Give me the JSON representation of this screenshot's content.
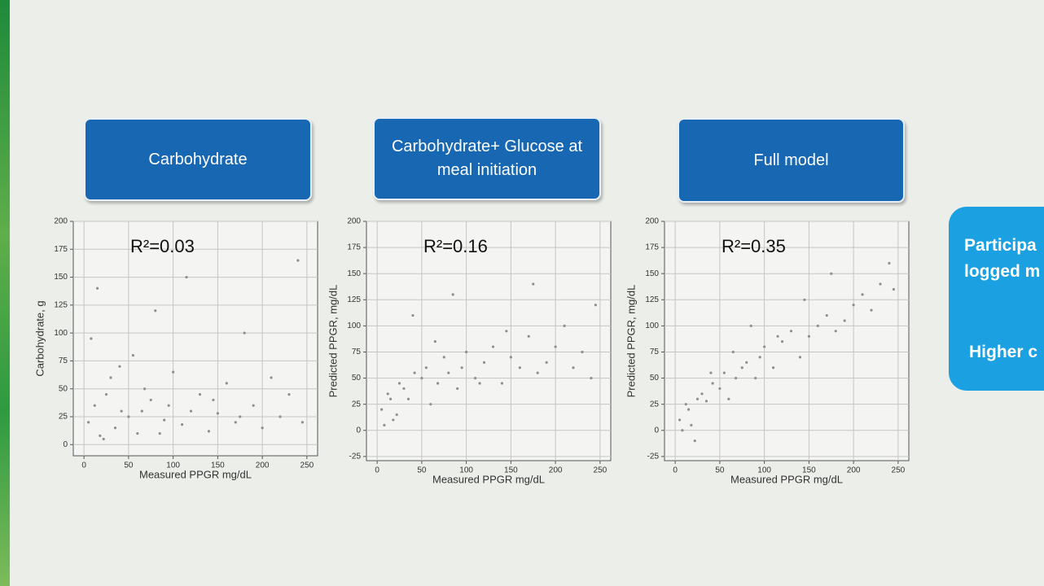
{
  "slide": {
    "side_panel": {
      "lines": [
        "Participa",
        "logged m",
        "Higher c"
      ]
    }
  },
  "chart_data": [
    {
      "type": "scatter",
      "title": "Carbohydrate",
      "annotation": "R²=0.03",
      "x_label": "Measured PPGR mg/dL",
      "y_label": "Carbohydrate, g",
      "color": "#8f8f8f",
      "grid": true,
      "xlim": [
        -12,
        262
      ],
      "ylim": [
        -10,
        200
      ],
      "xticks": [
        0,
        50,
        100,
        150,
        200,
        250
      ],
      "yticks": [
        0,
        25,
        50,
        75,
        100,
        125,
        150,
        175,
        200
      ],
      "x": [
        5,
        12,
        18,
        25,
        30,
        35,
        42,
        50,
        55,
        60,
        68,
        75,
        80,
        90,
        95,
        100,
        110,
        120,
        130,
        140,
        150,
        160,
        170,
        180,
        190,
        200,
        210,
        220,
        230,
        245,
        8,
        15,
        22,
        40,
        65,
        85,
        115,
        145,
        175,
        240
      ],
      "y": [
        20,
        35,
        8,
        45,
        60,
        15,
        30,
        25,
        80,
        10,
        50,
        40,
        120,
        22,
        35,
        65,
        18,
        30,
        45,
        12,
        28,
        55,
        20,
        100,
        35,
        15,
        60,
        25,
        45,
        20,
        95,
        140,
        5,
        70,
        30,
        10,
        150,
        40,
        25,
        165
      ]
    },
    {
      "type": "scatter",
      "title": "Carbohydrate+ Glucose at meal initiation",
      "annotation": "R²=0.16",
      "x_label": "Measured PPGR mg/dL",
      "y_label": "Predicted PPGR, mg/dL",
      "color": "#8f8f8f",
      "grid": true,
      "xlim": [
        -12,
        262
      ],
      "ylim": [
        -29,
        200
      ],
      "xticks": [
        0,
        50,
        100,
        150,
        200,
        250
      ],
      "yticks": [
        -25,
        0,
        25,
        50,
        75,
        100,
        125,
        150,
        175,
        200
      ],
      "x": [
        5,
        12,
        18,
        25,
        30,
        35,
        42,
        50,
        55,
        60,
        68,
        75,
        80,
        90,
        95,
        100,
        110,
        120,
        130,
        140,
        150,
        160,
        170,
        180,
        190,
        200,
        210,
        220,
        230,
        245,
        8,
        15,
        22,
        40,
        65,
        85,
        115,
        145,
        175,
        240
      ],
      "y": [
        20,
        35,
        10,
        45,
        40,
        30,
        55,
        50,
        60,
        25,
        45,
        70,
        55,
        40,
        60,
        75,
        50,
        65,
        80,
        45,
        70,
        60,
        90,
        55,
        65,
        80,
        100,
        60,
        75,
        120,
        5,
        30,
        15,
        110,
        85,
        130,
        45,
        95,
        140,
        50
      ]
    },
    {
      "type": "scatter",
      "title": "Full model",
      "annotation": "R²=0.35",
      "x_label": "Measured PPGR mg/dL",
      "y_label": "Predicted PPGR, mg/dL",
      "color": "#8f8f8f",
      "grid": true,
      "xlim": [
        -12,
        262
      ],
      "ylim": [
        -29,
        200
      ],
      "xticks": [
        0,
        50,
        100,
        150,
        200,
        250
      ],
      "yticks": [
        -25,
        0,
        25,
        50,
        75,
        100,
        125,
        150,
        175,
        200
      ],
      "x": [
        5,
        12,
        18,
        25,
        30,
        35,
        42,
        50,
        55,
        60,
        68,
        75,
        80,
        90,
        95,
        100,
        110,
        120,
        130,
        140,
        150,
        160,
        170,
        180,
        190,
        200,
        210,
        220,
        230,
        245,
        8,
        15,
        22,
        40,
        65,
        85,
        115,
        145,
        175,
        240
      ],
      "y": [
        10,
        25,
        5,
        30,
        35,
        28,
        45,
        40,
        55,
        30,
        50,
        60,
        65,
        50,
        70,
        80,
        60,
        85,
        95,
        70,
        90,
        100,
        110,
        95,
        105,
        120,
        130,
        115,
        140,
        135,
        0,
        20,
        -10,
        55,
        75,
        100,
        90,
        125,
        150,
        160
      ]
    }
  ]
}
